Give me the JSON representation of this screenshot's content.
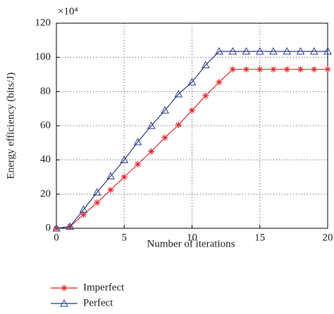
{
  "chart_data": {
    "type": "line",
    "xlabel": "Number of iterations",
    "ylabel": "Energy efficiency (bits/J)",
    "y_multiplier": "×10⁴",
    "x": [
      0,
      1,
      2,
      3,
      4,
      5,
      6,
      7,
      8,
      9,
      10,
      11,
      12,
      13,
      14,
      15,
      16,
      17,
      18,
      19,
      20
    ],
    "series": [
      {
        "name": "Imperfect",
        "color": "#e8262b",
        "marker": "star",
        "values": [
          0,
          1,
          8,
          15,
          22.5,
          30,
          37.5,
          45,
          53,
          60.5,
          69,
          77.5,
          85.5,
          93,
          93,
          93,
          93,
          93,
          93,
          93,
          93
        ]
      },
      {
        "name": "Perfect",
        "color": "#2a3d8f",
        "marker": "triangle",
        "values": [
          0,
          1,
          11,
          21,
          30.5,
          40,
          50.5,
          60,
          69,
          78.5,
          85.5,
          95.5,
          103.5,
          103.5,
          103.5,
          103.5,
          103.5,
          103.5,
          103.5,
          103.5,
          103.5
        ]
      }
    ],
    "xlim": [
      0,
      20
    ],
    "xticks": [
      0,
      5,
      10,
      15,
      20
    ],
    "ylim": [
      0,
      120
    ],
    "yticks": [
      0,
      20,
      40,
      60,
      80,
      100,
      120
    ],
    "grid": true,
    "legend": "below-left"
  }
}
